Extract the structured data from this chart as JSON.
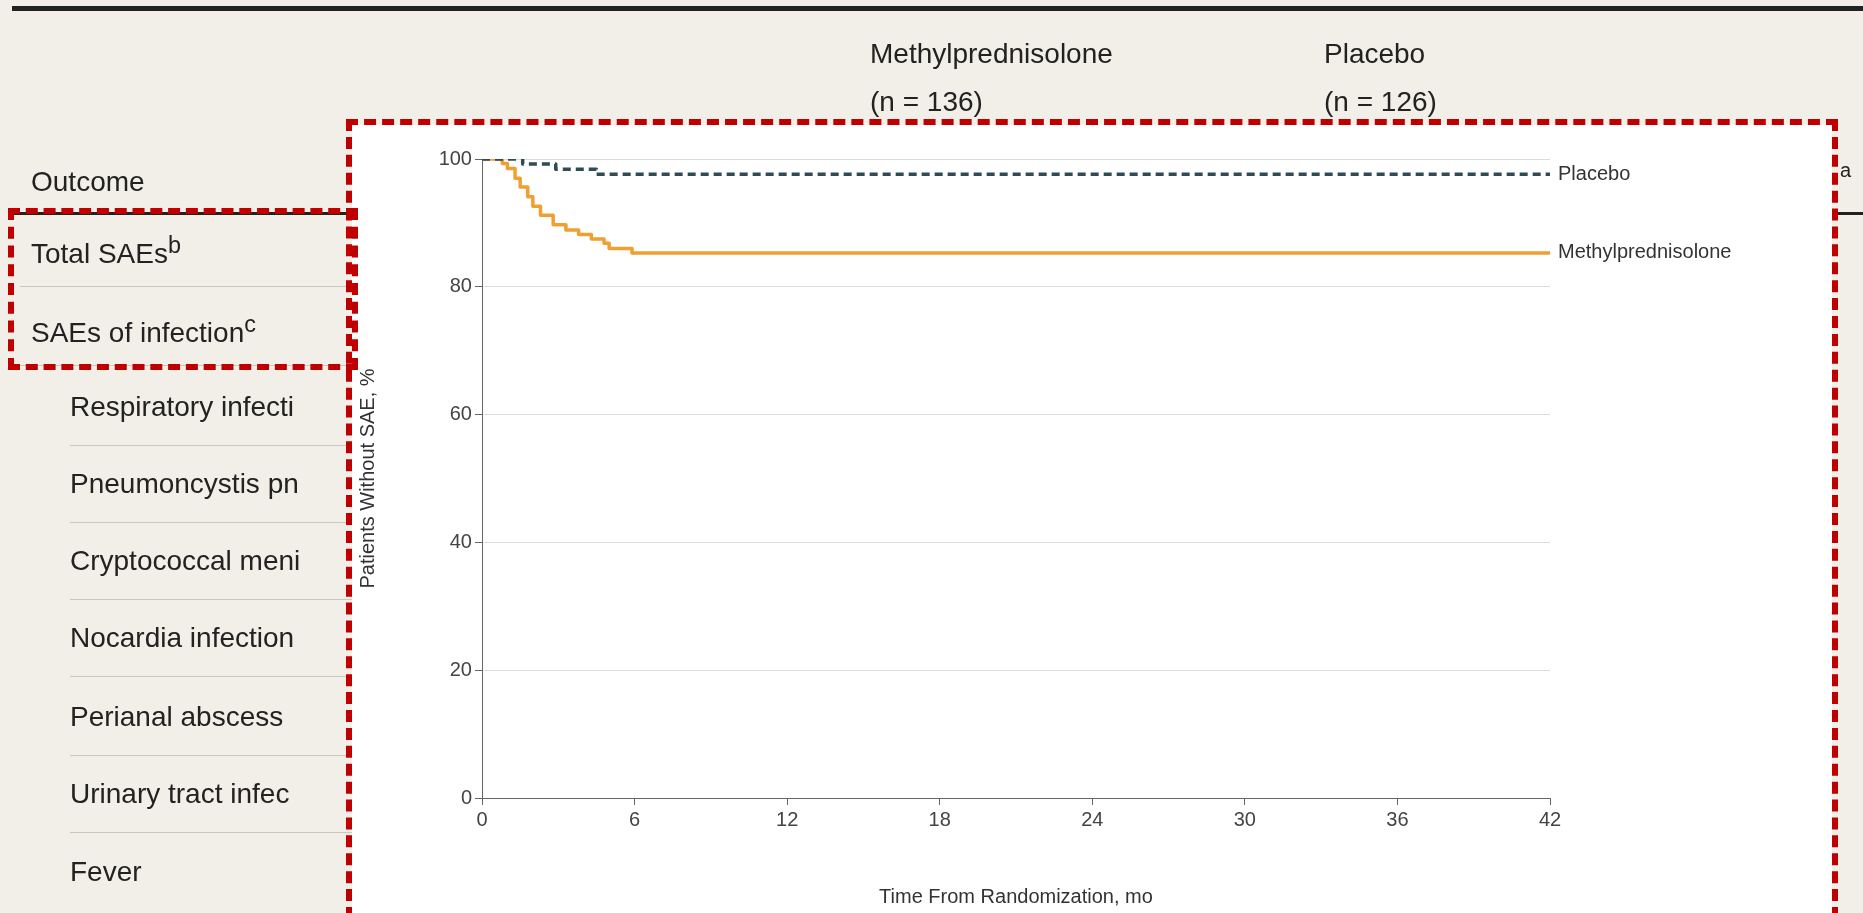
{
  "chart_data": {
    "type": "step",
    "xlabel": "Time From Randomization, mo",
    "ylabel": "Patients Without SAE, %",
    "xlim": [
      0,
      42
    ],
    "xticks": [
      0,
      6,
      12,
      18,
      24,
      30,
      36,
      42
    ],
    "ylim": [
      0,
      100
    ],
    "yticks": [
      0,
      20,
      40,
      60,
      80,
      100
    ],
    "grid": "y",
    "legend": false,
    "series": [
      {
        "name": "Placebo",
        "color": "#2f4b55",
        "line_style": "dashed",
        "x": [
          0,
          1.6,
          2.9,
          4.5,
          42
        ],
        "values": [
          100,
          99.2,
          98.4,
          97.6,
          97.6
        ]
      },
      {
        "name": "Methylprednisolone",
        "color": "#f0a030",
        "line_style": "solid",
        "x": [
          0,
          0.8,
          1.0,
          1.3,
          1.5,
          1.8,
          2.0,
          2.3,
          2.8,
          3.3,
          3.8,
          4.3,
          4.8,
          5.0,
          5.9,
          42
        ],
        "values": [
          100,
          99.3,
          98.5,
          97,
          95.6,
          94.1,
          92.6,
          91.2,
          89.7,
          88.9,
          88.2,
          87.5,
          86.8,
          86,
          85.3,
          85.3
        ]
      }
    ],
    "annotations": [
      "Methylprednisolone",
      "(n = 136)",
      "Placebo",
      "(n = 126)",
      "Outcome",
      "Total SAEs$^{b}$",
      "SAEs of infection$^{c}$",
      "Respiratory infecti",
      "Pneumoncystis pn",
      "Cryptococcal meni",
      "Nocardia infection",
      "Perianal abscess",
      "Urinary tract infec",
      "Fever",
      "a"
    ]
  }
}
